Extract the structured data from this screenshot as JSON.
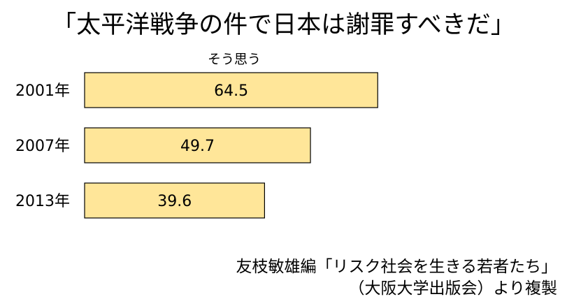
{
  "title": "「太平洋戦争の件で日本は謝罪すべきだ」",
  "chart_data": {
    "type": "bar",
    "orientation": "horizontal",
    "categories": [
      "2001年",
      "2007年",
      "2013年"
    ],
    "series": [
      {
        "name": "そう思う",
        "values": [
          64.5,
          49.7,
          39.6
        ]
      }
    ],
    "value_labels": [
      "64.5",
      "49.7",
      "39.6"
    ],
    "xlim": [
      0,
      100
    ],
    "grid": false,
    "colors": {
      "bar_fill": "#FFE699",
      "bar_stroke": "#000000"
    }
  },
  "source": {
    "line1": "友枝敏雄編「リスク社会を生きる若者たち」",
    "line2": "（大阪大学出版会）より複製"
  }
}
